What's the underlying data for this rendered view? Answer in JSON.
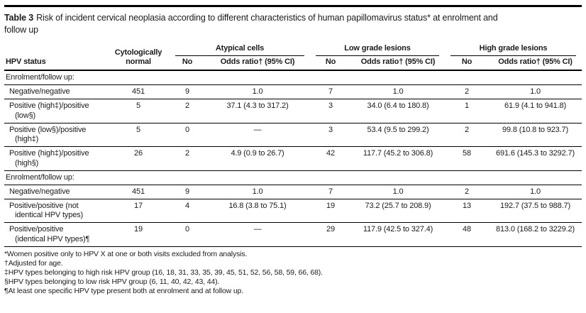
{
  "caption": {
    "label": "Table 3",
    "text": "Risk of incident cervical neoplasia according to different characteristics of human papillomavirus status* at enrolment and\nfollow up"
  },
  "table": {
    "header": {
      "hpv_status": "HPV status",
      "cyt_normal": "Cytologically\nnormal",
      "groups": [
        {
          "label": "Atypical cells",
          "no": "No",
          "or": "Odds ratio† (95% CI)"
        },
        {
          "label": "Low grade lesions",
          "no": "No",
          "or": "Odds ratio† (95% CI)"
        },
        {
          "label": "High grade lesions",
          "no": "No",
          "or": "Odds ratio† (95% CI)"
        }
      ]
    },
    "sections": [
      {
        "header": "Enrolment/follow up:",
        "rows": [
          {
            "label": "Negative/negative",
            "cells": [
              "451",
              "9",
              "1.0",
              "7",
              "1.0",
              "2",
              "1.0"
            ]
          },
          {
            "label": "Positive (high‡)/positive\n(low§)",
            "cells": [
              "5",
              "2",
              "37.1 (4.3 to 317.2)",
              "3",
              "34.0 (6.4 to 180.8)",
              "1",
              "61.9 (4.1 to 941.8)"
            ]
          },
          {
            "label": "Positive (low§)/positive\n(high‡)",
            "cells": [
              "5",
              "0",
              "—",
              "3",
              "53.4 (9.5 to 299.2)",
              "2",
              "99.8 (10.8 to 923.7)"
            ]
          },
          {
            "label": "Positive (high‡)/positive\n(high§)",
            "cells": [
              "26",
              "2",
              "4.9 (0.9 to 26.7)",
              "42",
              "117.7 (45.2 to 306.8)",
              "58",
              "691.6 (145.3 to 3292.7)"
            ]
          }
        ]
      },
      {
        "header": "Enrolment/follow up:",
        "rows": [
          {
            "label": "Negative/negative",
            "cells": [
              "451",
              "9",
              "1.0",
              "7",
              "1.0",
              "2",
              "1.0"
            ]
          },
          {
            "label": "Positive/positive (not\nidentical HPV types)",
            "cells": [
              "17",
              "4",
              "16.8 (3.8 to 75.1)",
              "19",
              "73.2 (25.7 to 208.9)",
              "13",
              "192.7 (37.5 to 988.7)"
            ]
          },
          {
            "label": "Positive/positive\n(identical HPV types)¶",
            "cells": [
              "19",
              "0",
              "—",
              "29",
              "117.9 (42.5 to 327.4)",
              "48",
              "813.0 (168.2 to 3229.2)"
            ]
          }
        ]
      }
    ],
    "footnotes": [
      "*Women positive only to HPV X at one or both visits excluded from analysis.",
      "†Adjusted for age.",
      "‡HPV types belonging to high risk HPV group (16, 18, 31, 33, 35, 39, 45, 51, 52, 56, 58, 59, 66, 68).",
      "§HPV types belonging to low risk HPV group (6, 11, 40, 42, 43, 44).",
      "¶At least one specific HPV type present both at enrolment and at follow up."
    ]
  }
}
